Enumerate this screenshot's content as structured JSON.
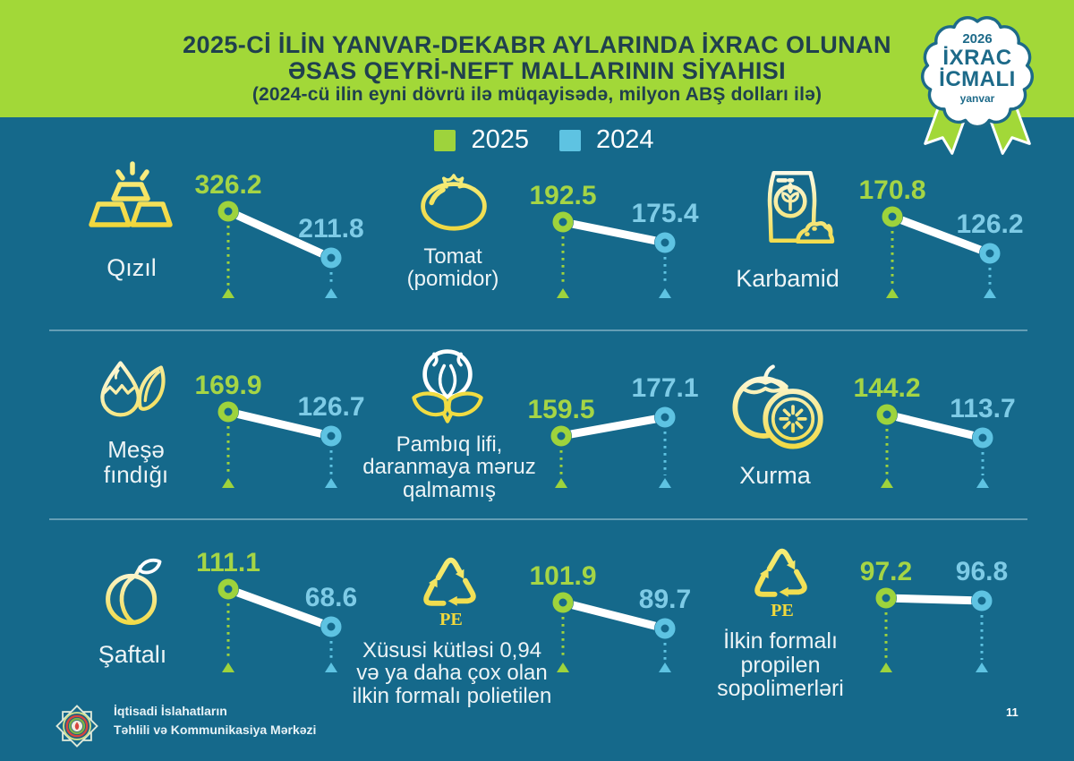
{
  "header": {
    "title_line1": "2025-Cİ İLİN YANVAR-DEKABR AYLARINDA İXRAC OLUNAN",
    "title_line2": "ƏSAS QEYRİ-NEFT MALLARININ SİYAHISI",
    "subtitle": "(2024-cü ilin eyni dövrü ilə müqayisədə, milyon ABŞ dolları ilə)",
    "badge": {
      "year": "2026",
      "line1": "İXRAC",
      "line2": "İCMALI",
      "footnote": "yanvar"
    }
  },
  "legend": {
    "items": [
      {
        "label": "2025",
        "color": "#9ed33c"
      },
      {
        "label": "2024",
        "color": "#5ec3e2"
      }
    ]
  },
  "chart_data": {
    "type": "dumbbell",
    "unit": "milyon ABŞ dolları ilə",
    "series": [
      "2025",
      "2024"
    ],
    "items": [
      {
        "name": "Qızıl",
        "icon": "gold-bars",
        "v2025": 326.2,
        "v2024": 211.8,
        "label_lines": [
          "Qızıl"
        ]
      },
      {
        "name": "Tomat (pomidor)",
        "icon": "tomato",
        "v2025": 192.5,
        "v2024": 175.4,
        "label_lines": [
          "Tomat",
          "(pomidor)"
        ]
      },
      {
        "name": "Karbamid",
        "icon": "fertilizer-bag",
        "v2025": 170.8,
        "v2024": 126.2,
        "label_lines": [
          "Karbamid"
        ]
      },
      {
        "name": "Meşə fındığı",
        "icon": "hazelnut",
        "v2025": 169.9,
        "v2024": 126.7,
        "label_lines": [
          "Meşə",
          "fındığı"
        ]
      },
      {
        "name": "Pambıq lifi, daranmaya məruz qalmamış",
        "icon": "cotton",
        "v2025": 159.5,
        "v2024": 177.1,
        "label_lines": [
          "Pambıq lifi,",
          "daranmaya məruz",
          "qalmamış"
        ]
      },
      {
        "name": "Xurma",
        "icon": "persimmon",
        "v2025": 144.2,
        "v2024": 113.7,
        "label_lines": [
          "Xurma"
        ]
      },
      {
        "name": "Şaftalı",
        "icon": "peach",
        "v2025": 111.1,
        "v2024": 68.6,
        "label_lines": [
          "Şaftalı"
        ]
      },
      {
        "name": "Xüsusi kütləsi 0,94 və ya daha çox olan ilkin formalı polietilen",
        "icon": "recycle-pe",
        "v2025": 101.9,
        "v2024": 89.7,
        "label_lines": [
          "Xüsusi kütləsi 0,94",
          "və ya daha çox olan",
          "ilkin formalı polietilen"
        ]
      },
      {
        "name": "İlkin formalı propilen sopolimerləri",
        "icon": "recycle-pe",
        "v2025": 97.2,
        "v2024": 96.8,
        "label_lines": [
          "İlkin formalı",
          "propilen",
          "sopolimerləri"
        ]
      }
    ]
  },
  "footer": {
    "org_line1": "İqtisadi İslahatların",
    "org_line2": "Təhlili və Kommunikasiya Mərkəzi",
    "page": "11"
  },
  "colors": {
    "background": "#15698b",
    "header_green": "#a2d838",
    "accent_2025": "#9ed33c",
    "accent_2024": "#5ec3e2",
    "value_2025": "#a5d545",
    "value_2024": "#7ecbe6",
    "icon_yellow": "#f2dc3c",
    "title_text": "#20404e",
    "connector": "#ffffff"
  }
}
